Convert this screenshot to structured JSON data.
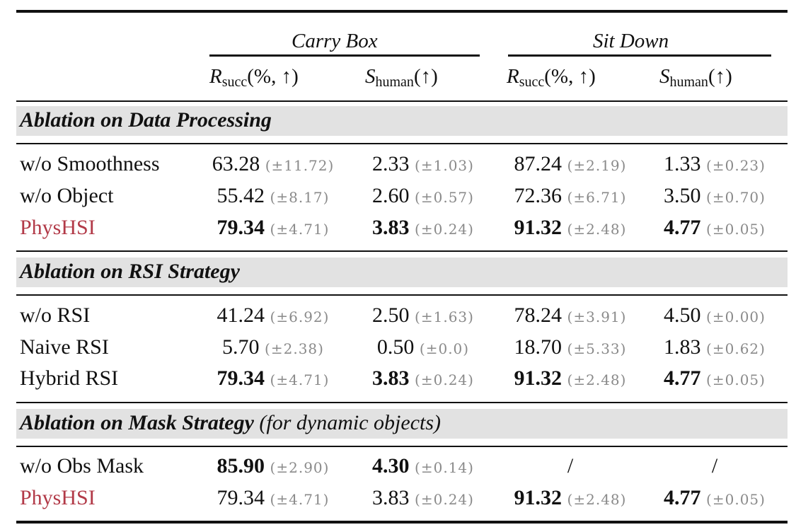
{
  "header": {
    "group1": "Carry Box",
    "group2": "Sit Down",
    "col1": {
      "main": "R",
      "sub": "succ",
      "tail": "(%, ↑)"
    },
    "col2": {
      "main": "S",
      "sub": "human",
      "tail": "(↑)"
    },
    "col3": {
      "main": "R",
      "sub": "succ",
      "tail": "(%, ↑)"
    },
    "col4": {
      "main": "S",
      "sub": "human",
      "tail": "(↑)"
    }
  },
  "sections": [
    {
      "title": "Ablation on Data Processing",
      "note": "",
      "rows": [
        {
          "label": "w/o Smoothness",
          "accent": false,
          "cells": [
            {
              "v": "63.28",
              "sd": "(±11.72)",
              "bold": false
            },
            {
              "v": "2.33",
              "sd": "(±1.03)",
              "bold": false
            },
            {
              "v": "87.24",
              "sd": "(±2.19)",
              "bold": false
            },
            {
              "v": "1.33",
              "sd": "(±0.23)",
              "bold": false
            }
          ]
        },
        {
          "label": "w/o Object",
          "accent": false,
          "cells": [
            {
              "v": "55.42",
              "sd": "(±8.17)",
              "bold": false
            },
            {
              "v": "2.60",
              "sd": "(±0.57)",
              "bold": false
            },
            {
              "v": "72.36",
              "sd": "(±6.71)",
              "bold": false
            },
            {
              "v": "3.50",
              "sd": "(±0.70)",
              "bold": false
            }
          ]
        },
        {
          "label": "PhysHSI",
          "accent": true,
          "cells": [
            {
              "v": "79.34",
              "sd": "(±4.71)",
              "bold": true
            },
            {
              "v": "3.83",
              "sd": "(±0.24)",
              "bold": true
            },
            {
              "v": "91.32",
              "sd": "(±2.48)",
              "bold": true
            },
            {
              "v": "4.77",
              "sd": "(±0.05)",
              "bold": true
            }
          ]
        }
      ]
    },
    {
      "title": "Ablation on RSI Strategy",
      "note": "",
      "rows": [
        {
          "label": "w/o RSI",
          "accent": false,
          "cells": [
            {
              "v": "41.24",
              "sd": "(±6.92)",
              "bold": false
            },
            {
              "v": "2.50",
              "sd": "(±1.63)",
              "bold": false
            },
            {
              "v": "78.24",
              "sd": "(±3.91)",
              "bold": false
            },
            {
              "v": "4.50",
              "sd": "(±0.00)",
              "bold": false
            }
          ]
        },
        {
          "label": "Naive RSI",
          "accent": false,
          "cells": [
            {
              "v": "5.70",
              "sd": "(±2.38)",
              "bold": false
            },
            {
              "v": "0.50",
              "sd": "(±0.0)",
              "bold": false
            },
            {
              "v": "18.70",
              "sd": "(±5.33)",
              "bold": false
            },
            {
              "v": "1.83",
              "sd": "(±0.62)",
              "bold": false
            }
          ]
        },
        {
          "label": "Hybrid RSI",
          "accent": false,
          "cells": [
            {
              "v": "79.34",
              "sd": "(±4.71)",
              "bold": true
            },
            {
              "v": "3.83",
              "sd": "(±0.24)",
              "bold": true
            },
            {
              "v": "91.32",
              "sd": "(±2.48)",
              "bold": true
            },
            {
              "v": "4.77",
              "sd": "(±0.05)",
              "bold": true
            }
          ]
        }
      ]
    },
    {
      "title": "Ablation on Mask Strategy",
      "note": "(for dynamic objects)",
      "rows": [
        {
          "label": "w/o Obs Mask",
          "accent": false,
          "cells": [
            {
              "v": "85.90",
              "sd": "(±2.90)",
              "bold": true
            },
            {
              "v": "4.30",
              "sd": "(±0.14)",
              "bold": true
            },
            {
              "v": "/",
              "sd": "",
              "bold": false
            },
            {
              "v": "/",
              "sd": "",
              "bold": false
            }
          ]
        },
        {
          "label": "PhysHSI",
          "accent": true,
          "cells": [
            {
              "v": "79.34",
              "sd": "(±4.71)",
              "bold": false
            },
            {
              "v": "3.83",
              "sd": "(±0.24)",
              "bold": false
            },
            {
              "v": "91.32",
              "sd": "(±2.48)",
              "bold": true
            },
            {
              "v": "4.77",
              "sd": "(±0.05)",
              "bold": true
            }
          ]
        }
      ]
    }
  ]
}
